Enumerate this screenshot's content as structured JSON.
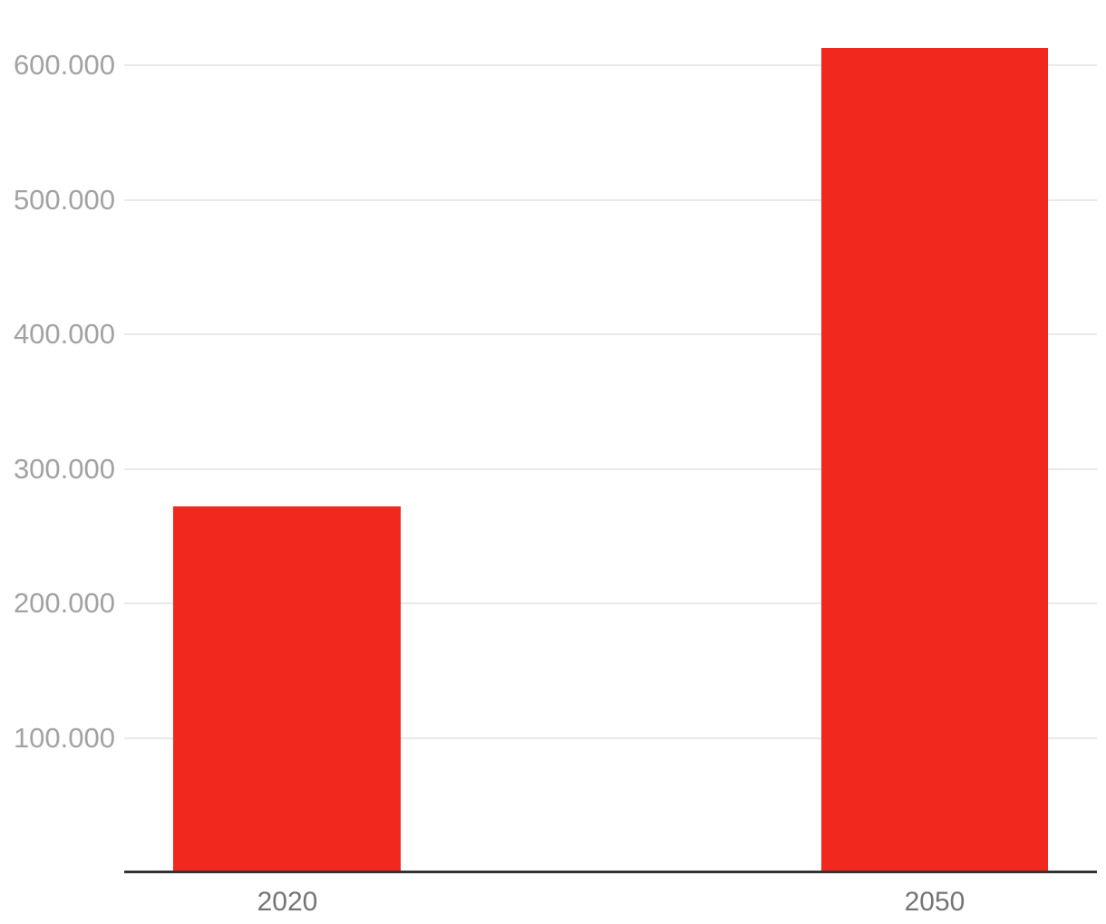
{
  "chart_data": {
    "type": "bar",
    "categories": [
      "2020",
      "2050"
    ],
    "values": [
      272000,
      613000
    ],
    "ytick_labels": [
      "100.000",
      "200.000",
      "300.000",
      "400.000",
      "500.000",
      "600.000"
    ],
    "ytick_values": [
      100000,
      200000,
      300000,
      400000,
      500000,
      600000
    ],
    "ylim": [
      0,
      650000
    ],
    "grid": true,
    "legend": false,
    "number_format": "dot-thousands-separator",
    "colors": {
      "bar": "#f0281e",
      "gridline": "#e9e9e9",
      "axis_line": "#333333",
      "ytick_text": "#a2a2a2",
      "xtick_text": "#747474",
      "background": "#ffffff"
    }
  }
}
